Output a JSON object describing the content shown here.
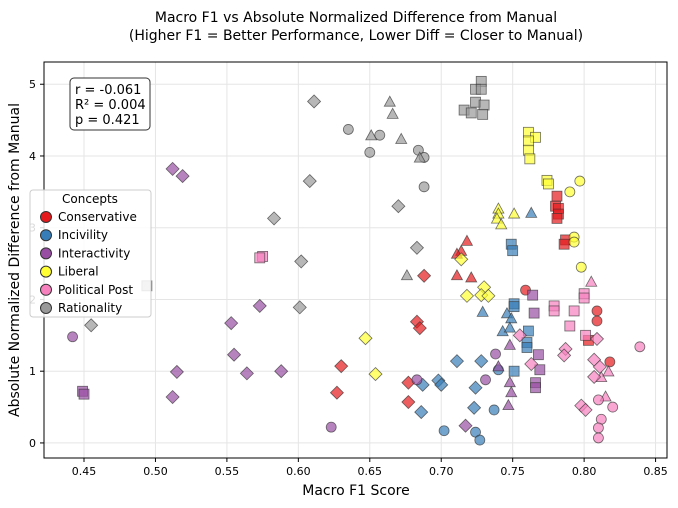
{
  "chart_data": {
    "type": "scatter",
    "title": "Macro F1 vs Absolute Normalized Difference from Manual",
    "subtitle": "(Higher F1 = Better Performance, Lower Diff = Closer to Manual)",
    "xlabel": "Macro F1 Score",
    "ylabel": "Absolute Normalized Difference from Manual",
    "xlim": [
      0.422,
      0.858
    ],
    "ylim": [
      -0.21,
      5.31
    ],
    "xticks": [
      "0.45",
      "0.50",
      "0.55",
      "0.60",
      "0.65",
      "0.70",
      "0.75",
      "0.80",
      "0.85"
    ],
    "yticks": [
      "0",
      "1",
      "2",
      "3",
      "4",
      "5"
    ],
    "grid": true,
    "stats": [
      "r = -0.061",
      "R² = 0.004",
      "p = 0.421"
    ],
    "legend": {
      "title": "Concepts",
      "placement": "center-left"
    },
    "series": [
      {
        "name": "Conservative",
        "color": "#e41a1c",
        "points": [
          {
            "x": 0.781,
            "y": 3.44,
            "m": "square"
          },
          {
            "x": 0.78,
            "y": 3.3,
            "m": "square"
          },
          {
            "x": 0.782,
            "y": 3.27,
            "m": "square"
          },
          {
            "x": 0.782,
            "y": 3.19,
            "m": "square"
          },
          {
            "x": 0.781,
            "y": 3.13,
            "m": "square"
          },
          {
            "x": 0.787,
            "y": 2.83,
            "m": "square"
          },
          {
            "x": 0.786,
            "y": 2.77,
            "m": "square"
          },
          {
            "x": 0.803,
            "y": 1.43,
            "m": "square"
          },
          {
            "x": 0.759,
            "y": 2.13,
            "m": "circle"
          },
          {
            "x": 0.809,
            "y": 1.84,
            "m": "circle"
          },
          {
            "x": 0.809,
            "y": 1.7,
            "m": "circle"
          },
          {
            "x": 0.818,
            "y": 1.13,
            "m": "circle"
          },
          {
            "x": 0.718,
            "y": 2.81,
            "m": "triangle"
          },
          {
            "x": 0.714,
            "y": 2.67,
            "m": "triangle"
          },
          {
            "x": 0.711,
            "y": 2.63,
            "m": "triangle"
          },
          {
            "x": 0.711,
            "y": 2.33,
            "m": "triangle"
          },
          {
            "x": 0.721,
            "y": 2.3,
            "m": "triangle"
          },
          {
            "x": 0.688,
            "y": 2.33,
            "m": "diamond"
          },
          {
            "x": 0.683,
            "y": 1.69,
            "m": "diamond"
          },
          {
            "x": 0.685,
            "y": 1.6,
            "m": "diamond"
          },
          {
            "x": 0.677,
            "y": 0.84,
            "m": "diamond"
          },
          {
            "x": 0.677,
            "y": 0.57,
            "m": "diamond"
          },
          {
            "x": 0.63,
            "y": 1.07,
            "m": "diamond"
          },
          {
            "x": 0.627,
            "y": 0.7,
            "m": "diamond"
          }
        ]
      },
      {
        "name": "Incivility",
        "color": "#377eb8",
        "points": [
          {
            "x": 0.763,
            "y": 3.2,
            "m": "triangle"
          },
          {
            "x": 0.749,
            "y": 2.77,
            "m": "square"
          },
          {
            "x": 0.75,
            "y": 2.68,
            "m": "square"
          },
          {
            "x": 0.751,
            "y": 1.94,
            "m": "square"
          },
          {
            "x": 0.751,
            "y": 1.9,
            "m": "square"
          },
          {
            "x": 0.761,
            "y": 1.56,
            "m": "square"
          },
          {
            "x": 0.76,
            "y": 1.4,
            "m": "square"
          },
          {
            "x": 0.76,
            "y": 1.33,
            "m": "square"
          },
          {
            "x": 0.751,
            "y": 1.0,
            "m": "square"
          },
          {
            "x": 0.729,
            "y": 1.82,
            "m": "triangle"
          },
          {
            "x": 0.746,
            "y": 1.8,
            "m": "triangle"
          },
          {
            "x": 0.749,
            "y": 1.73,
            "m": "triangle"
          },
          {
            "x": 0.743,
            "y": 1.55,
            "m": "triangle"
          },
          {
            "x": 0.748,
            "y": 1.6,
            "m": "triangle"
          },
          {
            "x": 0.711,
            "y": 1.14,
            "m": "diamond"
          },
          {
            "x": 0.728,
            "y": 1.14,
            "m": "diamond"
          },
          {
            "x": 0.687,
            "y": 0.81,
            "m": "diamond"
          },
          {
            "x": 0.698,
            "y": 0.87,
            "m": "diamond"
          },
          {
            "x": 0.7,
            "y": 0.81,
            "m": "diamond"
          },
          {
            "x": 0.724,
            "y": 0.77,
            "m": "diamond"
          },
          {
            "x": 0.686,
            "y": 0.43,
            "m": "diamond"
          },
          {
            "x": 0.723,
            "y": 0.49,
            "m": "diamond"
          },
          {
            "x": 0.74,
            "y": 1.02,
            "m": "circle"
          },
          {
            "x": 0.737,
            "y": 0.46,
            "m": "circle"
          },
          {
            "x": 0.702,
            "y": 0.17,
            "m": "circle"
          },
          {
            "x": 0.724,
            "y": 0.15,
            "m": "circle"
          },
          {
            "x": 0.727,
            "y": 0.04,
            "m": "circle"
          }
        ]
      },
      {
        "name": "Interactivity",
        "color": "#984ea3",
        "points": [
          {
            "x": 0.512,
            "y": 3.82,
            "m": "diamond"
          },
          {
            "x": 0.519,
            "y": 3.72,
            "m": "diamond"
          },
          {
            "x": 0.573,
            "y": 1.91,
            "m": "diamond"
          },
          {
            "x": 0.553,
            "y": 1.67,
            "m": "diamond"
          },
          {
            "x": 0.555,
            "y": 1.23,
            "m": "diamond"
          },
          {
            "x": 0.564,
            "y": 0.97,
            "m": "diamond"
          },
          {
            "x": 0.588,
            "y": 1.0,
            "m": "diamond"
          },
          {
            "x": 0.515,
            "y": 0.99,
            "m": "diamond"
          },
          {
            "x": 0.512,
            "y": 0.64,
            "m": "diamond"
          },
          {
            "x": 0.717,
            "y": 0.24,
            "m": "diamond"
          },
          {
            "x": 0.442,
            "y": 1.48,
            "m": "circle"
          },
          {
            "x": 0.623,
            "y": 0.22,
            "m": "circle"
          },
          {
            "x": 0.683,
            "y": 0.88,
            "m": "circle"
          },
          {
            "x": 0.731,
            "y": 0.88,
            "m": "circle"
          },
          {
            "x": 0.738,
            "y": 1.24,
            "m": "circle"
          },
          {
            "x": 0.449,
            "y": 0.72,
            "m": "square"
          },
          {
            "x": 0.45,
            "y": 0.68,
            "m": "square"
          },
          {
            "x": 0.764,
            "y": 2.06,
            "m": "square"
          },
          {
            "x": 0.765,
            "y": 1.81,
            "m": "square"
          },
          {
            "x": 0.768,
            "y": 1.23,
            "m": "square"
          },
          {
            "x": 0.769,
            "y": 1.02,
            "m": "square"
          },
          {
            "x": 0.766,
            "y": 0.84,
            "m": "square"
          },
          {
            "x": 0.766,
            "y": 0.77,
            "m": "square"
          },
          {
            "x": 0.748,
            "y": 1.36,
            "m": "triangle"
          },
          {
            "x": 0.74,
            "y": 1.06,
            "m": "triangle"
          },
          {
            "x": 0.748,
            "y": 0.84,
            "m": "triangle"
          },
          {
            "x": 0.749,
            "y": 0.7,
            "m": "triangle"
          },
          {
            "x": 0.747,
            "y": 0.52,
            "m": "triangle"
          }
        ]
      },
      {
        "name": "Liberal",
        "color": "#ffff33",
        "points": [
          {
            "x": 0.761,
            "y": 4.33,
            "m": "square"
          },
          {
            "x": 0.766,
            "y": 4.26,
            "m": "square"
          },
          {
            "x": 0.761,
            "y": 4.21,
            "m": "square"
          },
          {
            "x": 0.761,
            "y": 4.08,
            "m": "square"
          },
          {
            "x": 0.762,
            "y": 3.96,
            "m": "square"
          },
          {
            "x": 0.774,
            "y": 3.66,
            "m": "square"
          },
          {
            "x": 0.775,
            "y": 3.61,
            "m": "square"
          },
          {
            "x": 0.797,
            "y": 3.65,
            "m": "circle"
          },
          {
            "x": 0.79,
            "y": 3.5,
            "m": "circle"
          },
          {
            "x": 0.793,
            "y": 2.87,
            "m": "circle"
          },
          {
            "x": 0.793,
            "y": 2.8,
            "m": "circle"
          },
          {
            "x": 0.798,
            "y": 2.45,
            "m": "circle"
          },
          {
            "x": 0.74,
            "y": 3.26,
            "m": "triangle"
          },
          {
            "x": 0.74,
            "y": 3.19,
            "m": "triangle"
          },
          {
            "x": 0.739,
            "y": 3.12,
            "m": "triangle"
          },
          {
            "x": 0.751,
            "y": 3.19,
            "m": "triangle"
          },
          {
            "x": 0.742,
            "y": 3.04,
            "m": "triangle"
          },
          {
            "x": 0.714,
            "y": 2.56,
            "m": "diamond"
          },
          {
            "x": 0.73,
            "y": 2.17,
            "m": "diamond"
          },
          {
            "x": 0.728,
            "y": 2.06,
            "m": "diamond"
          },
          {
            "x": 0.718,
            "y": 2.05,
            "m": "diamond"
          },
          {
            "x": 0.733,
            "y": 2.05,
            "m": "diamond"
          },
          {
            "x": 0.647,
            "y": 1.46,
            "m": "diamond"
          },
          {
            "x": 0.654,
            "y": 0.96,
            "m": "diamond"
          }
        ]
      },
      {
        "name": "Political Post",
        "color": "#f781bf",
        "points": [
          {
            "x": 0.805,
            "y": 2.24,
            "m": "triangle"
          },
          {
            "x": 0.815,
            "y": 0.64,
            "m": "triangle"
          },
          {
            "x": 0.812,
            "y": 0.91,
            "m": "triangle"
          },
          {
            "x": 0.817,
            "y": 0.99,
            "m": "triangle"
          },
          {
            "x": 0.8,
            "y": 2.08,
            "m": "square"
          },
          {
            "x": 0.8,
            "y": 2.02,
            "m": "square"
          },
          {
            "x": 0.793,
            "y": 1.84,
            "m": "square"
          },
          {
            "x": 0.79,
            "y": 1.63,
            "m": "square"
          },
          {
            "x": 0.779,
            "y": 1.91,
            "m": "square"
          },
          {
            "x": 0.779,
            "y": 1.84,
            "m": "square"
          },
          {
            "x": 0.801,
            "y": 1.5,
            "m": "square"
          },
          {
            "x": 0.575,
            "y": 2.6,
            "m": "square"
          },
          {
            "x": 0.573,
            "y": 2.58,
            "m": "square"
          },
          {
            "x": 0.755,
            "y": 1.5,
            "m": "diamond"
          },
          {
            "x": 0.763,
            "y": 1.1,
            "m": "diamond"
          },
          {
            "x": 0.787,
            "y": 1.31,
            "m": "diamond"
          },
          {
            "x": 0.786,
            "y": 1.22,
            "m": "diamond"
          },
          {
            "x": 0.809,
            "y": 1.45,
            "m": "diamond"
          },
          {
            "x": 0.807,
            "y": 1.16,
            "m": "diamond"
          },
          {
            "x": 0.811,
            "y": 1.06,
            "m": "diamond"
          },
          {
            "x": 0.807,
            "y": 0.92,
            "m": "diamond"
          },
          {
            "x": 0.798,
            "y": 0.52,
            "m": "diamond"
          },
          {
            "x": 0.801,
            "y": 0.46,
            "m": "diamond"
          },
          {
            "x": 0.839,
            "y": 1.34,
            "m": "circle"
          },
          {
            "x": 0.81,
            "y": 0.6,
            "m": "circle"
          },
          {
            "x": 0.812,
            "y": 0.33,
            "m": "circle"
          },
          {
            "x": 0.82,
            "y": 0.5,
            "m": "circle"
          },
          {
            "x": 0.81,
            "y": 0.21,
            "m": "circle"
          },
          {
            "x": 0.81,
            "y": 0.07,
            "m": "circle"
          }
        ]
      },
      {
        "name": "Rationality",
        "color": "#999999",
        "points": [
          {
            "x": 0.611,
            "y": 4.76,
            "m": "diamond"
          },
          {
            "x": 0.608,
            "y": 3.65,
            "m": "diamond"
          },
          {
            "x": 0.583,
            "y": 3.13,
            "m": "diamond"
          },
          {
            "x": 0.602,
            "y": 2.53,
            "m": "diamond"
          },
          {
            "x": 0.601,
            "y": 1.89,
            "m": "diamond"
          },
          {
            "x": 0.455,
            "y": 1.64,
            "m": "diamond"
          },
          {
            "x": 0.67,
            "y": 3.3,
            "m": "diamond"
          },
          {
            "x": 0.683,
            "y": 2.72,
            "m": "diamond"
          },
          {
            "x": 0.635,
            "y": 4.37,
            "m": "circle"
          },
          {
            "x": 0.65,
            "y": 4.05,
            "m": "circle"
          },
          {
            "x": 0.657,
            "y": 4.29,
            "m": "circle"
          },
          {
            "x": 0.684,
            "y": 4.08,
            "m": "circle"
          },
          {
            "x": 0.688,
            "y": 3.98,
            "m": "circle"
          },
          {
            "x": 0.688,
            "y": 3.57,
            "m": "circle"
          },
          {
            "x": 0.664,
            "y": 4.75,
            "m": "triangle"
          },
          {
            "x": 0.666,
            "y": 4.58,
            "m": "triangle"
          },
          {
            "x": 0.651,
            "y": 4.28,
            "m": "triangle"
          },
          {
            "x": 0.672,
            "y": 4.23,
            "m": "triangle"
          },
          {
            "x": 0.685,
            "y": 3.97,
            "m": "triangle"
          },
          {
            "x": 0.676,
            "y": 2.33,
            "m": "triangle"
          },
          {
            "x": 0.494,
            "y": 2.19,
            "m": "square"
          },
          {
            "x": 0.728,
            "y": 5.04,
            "m": "square"
          },
          {
            "x": 0.724,
            "y": 4.93,
            "m": "square"
          },
          {
            "x": 0.728,
            "y": 4.93,
            "m": "square"
          },
          {
            "x": 0.716,
            "y": 4.64,
            "m": "square"
          },
          {
            "x": 0.724,
            "y": 4.75,
            "m": "square"
          },
          {
            "x": 0.73,
            "y": 4.71,
            "m": "square"
          },
          {
            "x": 0.721,
            "y": 4.6,
            "m": "square"
          },
          {
            "x": 0.729,
            "y": 4.58,
            "m": "square"
          }
        ]
      }
    ]
  }
}
